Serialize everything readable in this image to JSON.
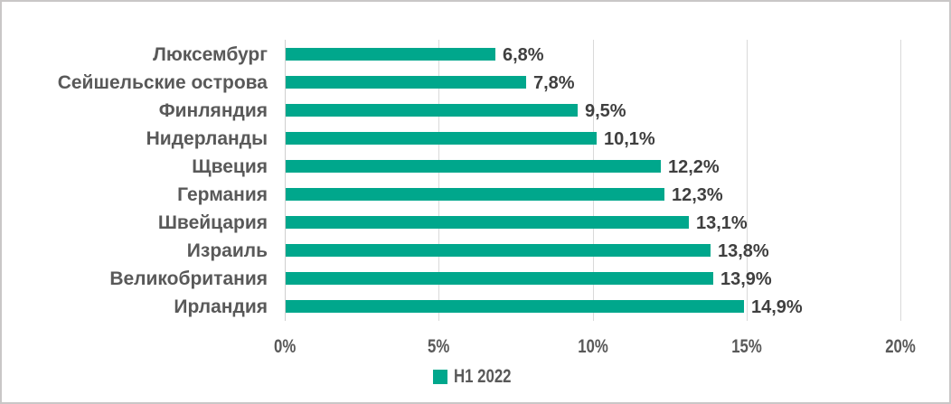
{
  "chart_data": {
    "type": "bar",
    "orientation": "horizontal",
    "title": "",
    "xlabel": "",
    "ylabel": "",
    "categories": [
      "Люксембург",
      "Сейшельские острова",
      "Финляндия",
      "Нидерланды",
      "Щвеция",
      "Германия",
      "Швейцария",
      "Израиль",
      "Великобритания",
      "Ирландия"
    ],
    "series": [
      {
        "name": "H1 2022",
        "values": [
          6.8,
          7.8,
          9.5,
          10.1,
          12.2,
          12.3,
          13.1,
          13.8,
          13.9,
          14.9
        ],
        "value_labels": [
          "6,8%",
          "7,8%",
          "9,5%",
          "10,1%",
          "12,2%",
          "12,3%",
          "13,1%",
          "13,8%",
          "13,9%",
          "14,9%"
        ]
      }
    ],
    "xlim": [
      0,
      20
    ],
    "x_ticks": [
      "0%",
      "5%",
      "10%",
      "15%",
      "20%"
    ],
    "x_tick_values": [
      0,
      5,
      10,
      15,
      20
    ],
    "grid": "vertical",
    "legend": {
      "label": "H1 2022",
      "position": "bottom-center"
    }
  },
  "colors": {
    "bar": "#00a78c",
    "category_label": "#595959",
    "value_label": "#3f3f3f",
    "tick_label": "#595959",
    "gridline": "#d9d9d9",
    "axis_line": "#cfcfcf",
    "frame_border": "#c9c7c7",
    "background": "#ffffff"
  }
}
